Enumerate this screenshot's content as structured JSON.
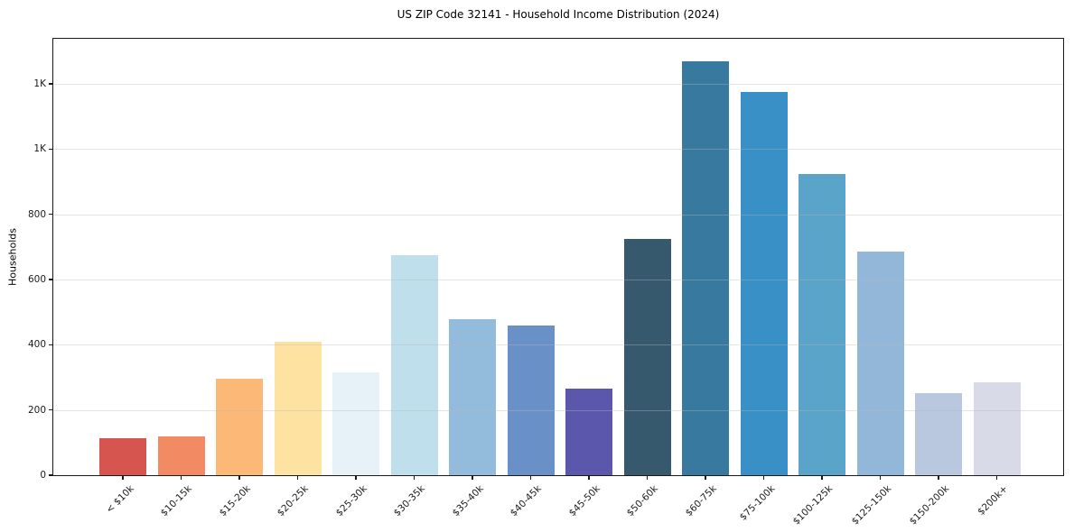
{
  "title": "US ZIP Code 32141 - Household Income Distribution (2024)",
  "chart_data": {
    "type": "bar",
    "title": "US ZIP Code 32141 - Household Income Distribution (2024)",
    "xlabel": "",
    "ylabel": "Households",
    "ylim": [
      0,
      1338
    ],
    "grid": "horizontal-on-top",
    "legend": "none",
    "categories": [
      "< $10k",
      "$10-15k",
      "$15-20k",
      "$20-25k",
      "$25-30k",
      "$30-35k",
      "$35-40k",
      "$40-45k",
      "$45-50k",
      "$50-60k",
      "$60-75k",
      "$75-100k",
      "$100-125k",
      "$125-150k",
      "$150-200k",
      "$200k+"
    ],
    "values": [
      114,
      120,
      297,
      408,
      315,
      675,
      479,
      459,
      266,
      724,
      1269,
      1176,
      924,
      686,
      252,
      285
    ],
    "bar_colors": [
      "#d6554e",
      "#f28a63",
      "#fcb877",
      "#fde2a2",
      "#e6f2f7",
      "#bfdfed",
      "#93bcdc",
      "#6a90c8",
      "#5b57ac",
      "#36596d",
      "#37799f",
      "#3890c6",
      "#5ba4c9",
      "#92b7d8",
      "#b9c8de",
      "#d8dae8"
    ],
    "yticks": [
      {
        "value": 0,
        "label": "0"
      },
      {
        "value": 200,
        "label": "200"
      },
      {
        "value": 400,
        "label": "400"
      },
      {
        "value": 600,
        "label": "600"
      },
      {
        "value": 800,
        "label": "800"
      },
      {
        "value": 1000,
        "label": "1K"
      },
      {
        "value": 1200,
        "label": "1K"
      }
    ]
  },
  "colors": {
    "background": "#ffffff",
    "spine": "#1a1a1a",
    "grid": "#e6e6e6",
    "text": "#1a1a1a"
  }
}
